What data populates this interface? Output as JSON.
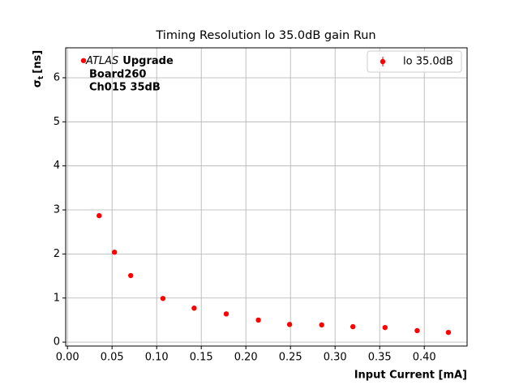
{
  "chart_data": {
    "type": "scatter",
    "title": "Timing Resolution lo 35.0dB gain Run",
    "xlabel": "Input Current [mA]",
    "ylabel": {
      "symbol": "σ",
      "subscript": "t",
      "unit": "[ns]"
    },
    "annotations": {
      "experiment": "ATLAS",
      "tag": "Upgrade",
      "lines": [
        "Board260",
        "Ch015 35dB"
      ]
    },
    "xlim": [
      -0.002,
      0.448
    ],
    "ylim": [
      -0.09,
      6.68
    ],
    "xticks": [
      {
        "value": 0.0,
        "label": "0.00"
      },
      {
        "value": 0.05,
        "label": "0.05"
      },
      {
        "value": 0.1,
        "label": "0.10"
      },
      {
        "value": 0.15,
        "label": "0.15"
      },
      {
        "value": 0.2,
        "label": "0.20"
      },
      {
        "value": 0.25,
        "label": "0.25"
      },
      {
        "value": 0.3,
        "label": "0.30"
      },
      {
        "value": 0.35,
        "label": "0.35"
      },
      {
        "value": 0.4,
        "label": "0.40"
      }
    ],
    "yticks": [
      0,
      1,
      2,
      3,
      4,
      5,
      6
    ],
    "grid": true,
    "legend": "upper right",
    "series": [
      {
        "name": "lo 35.0dB",
        "color": "#ff0000",
        "x": [
          0.018,
          0.0355,
          0.0527,
          0.0709,
          0.107,
          0.142,
          0.178,
          0.214,
          0.249,
          0.285,
          0.32,
          0.356,
          0.392,
          0.427
        ],
        "values": [
          6.39,
          2.87,
          2.04,
          1.51,
          0.99,
          0.77,
          0.64,
          0.5,
          0.4,
          0.39,
          0.35,
          0.33,
          0.26,
          0.22
        ]
      }
    ]
  }
}
